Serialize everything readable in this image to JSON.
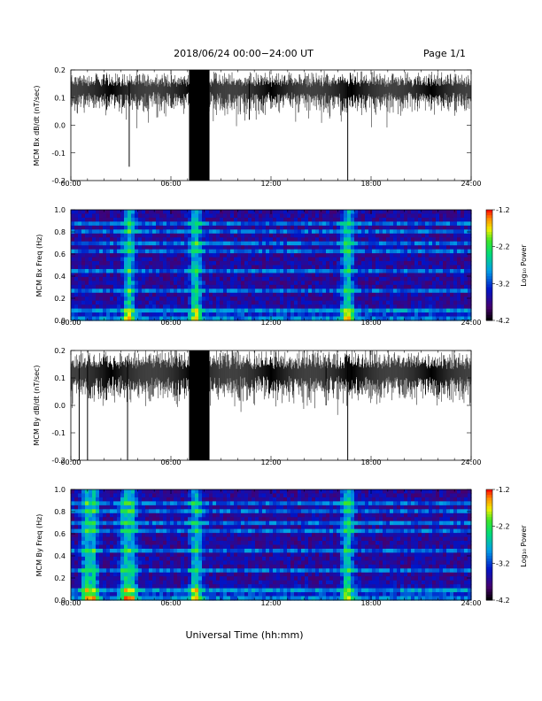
{
  "header": {
    "title": "2018/06/24  00:00−24:00 UT",
    "page": "Page 1/1"
  },
  "x_axis": {
    "label": "Universal Time (hh:mm)",
    "ticks": [
      "00:00",
      "06:00",
      "12:00",
      "18:00",
      "24:00"
    ],
    "range_hours": [
      0,
      24
    ]
  },
  "colorbar": {
    "label": "Log₁₀ Power",
    "ticks": [
      "-1.2",
      "-2.2",
      "-3.2",
      "-4.2"
    ],
    "range": [
      -4.2,
      -1.2
    ],
    "colormap": "rainbow"
  },
  "chart_data": [
    {
      "id": "bx_timeseries",
      "type": "line",
      "ylabel": "MCM Bx dB/dt (nT/sec)",
      "ylim": [
        -0.2,
        0.2
      ],
      "yticks": [
        "0.2",
        "0.1",
        "0.0",
        "-0.1",
        "-0.2"
      ],
      "xlim": [
        0,
        24
      ],
      "baseline": 0.13,
      "noise_amplitude": 0.03,
      "color": "#000000",
      "events": [
        {
          "x": 3.5,
          "min": -0.15
        },
        {
          "x": 7.3,
          "min": -0.2,
          "max": 0.2
        },
        {
          "x": 7.7,
          "min": -0.2,
          "max": 0.2
        },
        {
          "x": 8.1,
          "min": -0.2,
          "max": 0.2
        },
        {
          "x": 10.7,
          "min": 0.02
        },
        {
          "x": 16.6,
          "min": -0.2
        }
      ]
    },
    {
      "id": "bx_spectrogram",
      "type": "heatmap",
      "ylabel": "MCM Bx Freq (Hz)",
      "ylim": [
        0,
        1.0
      ],
      "yticks": [
        "1.0",
        "0.8",
        "0.6",
        "0.4",
        "0.2",
        "0.0"
      ],
      "xlim": [
        0,
        24
      ],
      "hot_times": [
        3.5,
        7.5,
        16.6
      ],
      "harmonic_step_hz": 0.06
    },
    {
      "id": "by_timeseries",
      "type": "line",
      "ylabel": "MCM By dB/dt (nT/sec)",
      "ylim": [
        -0.2,
        0.2
      ],
      "yticks": [
        "0.2",
        "0.1",
        "0.0",
        "-0.1",
        "-0.2"
      ],
      "xlim": [
        0,
        24
      ],
      "baseline": 0.12,
      "noise_amplitude": 0.04,
      "color": "#000000",
      "events": [
        {
          "x": 0.5,
          "min": -0.2
        },
        {
          "x": 1.0,
          "min": -0.2
        },
        {
          "x": 3.4,
          "min": -0.2
        },
        {
          "x": 7.3,
          "min": -0.2,
          "max": 0.2
        },
        {
          "x": 7.7,
          "min": -0.2,
          "max": 0.2
        },
        {
          "x": 8.1,
          "min": -0.2,
          "max": 0.2
        },
        {
          "x": 15.3,
          "min": 0.0
        },
        {
          "x": 16.6,
          "min": -0.2
        }
      ]
    },
    {
      "id": "by_spectrogram",
      "type": "heatmap",
      "ylabel": "MCM By Freq (Hz)",
      "ylim": [
        0,
        1.0
      ],
      "yticks": [
        "1.0",
        "0.8",
        "0.6",
        "0.4",
        "0.2",
        "0.0"
      ],
      "xlim": [
        0,
        24
      ],
      "hot_times": [
        1.0,
        1.3,
        3.3,
        3.6,
        7.5,
        16.6
      ],
      "harmonic_step_hz": 0.06
    }
  ]
}
